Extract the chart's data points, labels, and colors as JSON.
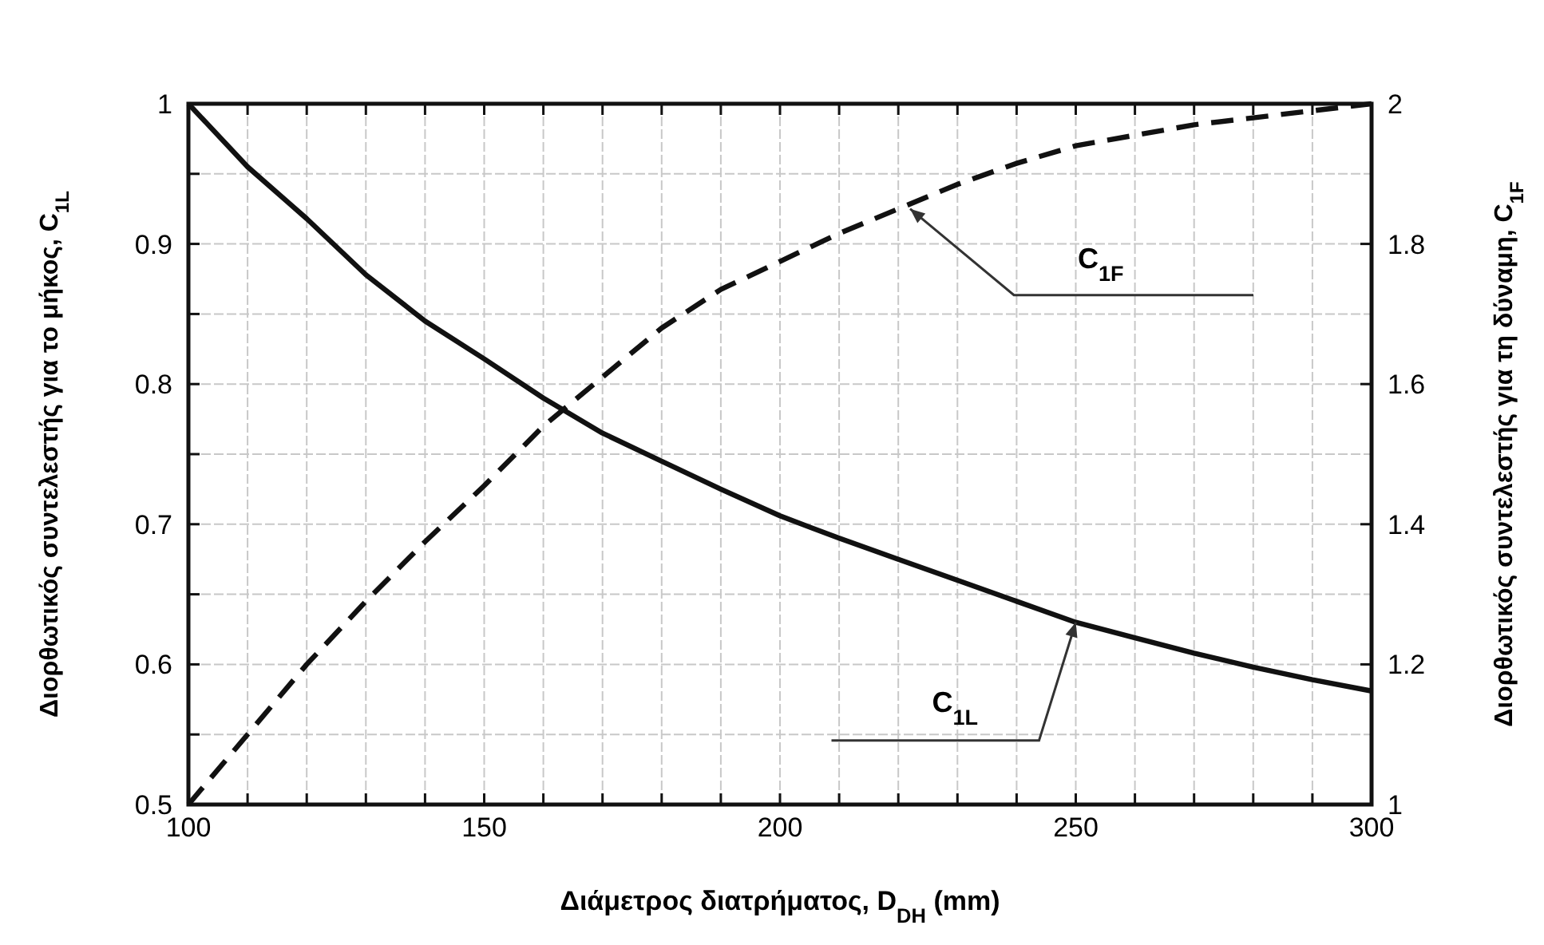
{
  "chart_data": {
    "type": "line",
    "xlabel": "Διάμετρος διατρήματος, D$_{DH}$ (mm)",
    "ylabel": "Διορθωτικός συντελεστής για το μήκος, C$_{1L}$",
    "y2label": "Διορθωτικός συντελεστής για τη δύναμη, C$_{1F}$",
    "x": [
      100,
      110,
      120,
      130,
      140,
      150,
      160,
      170,
      180,
      190,
      200,
      210,
      220,
      230,
      240,
      250,
      260,
      270,
      280,
      290,
      300
    ],
    "series": [
      {
        "color": "#111111",
        "line_style": "solid",
        "values": [
          1.0,
          0.955,
          0.918,
          0.878,
          0.845,
          0.818,
          0.79,
          0.765,
          0.745,
          0.725,
          0.706,
          0.69,
          0.675,
          0.66,
          0.645,
          0.63,
          0.619,
          0.608,
          0.598,
          0.589,
          0.581
        ]
      },
      {
        "color": "#111111",
        "line_style": "dashed",
        "axis": "y2",
        "values": [
          1.0,
          1.1,
          1.2,
          1.29,
          1.375,
          1.455,
          1.54,
          1.61,
          1.68,
          1.735,
          1.775,
          1.815,
          1.85,
          1.885,
          1.915,
          1.94,
          1.955,
          1.97,
          1.98,
          1.99,
          2.0
        ]
      }
    ],
    "xlim": [
      100,
      300
    ],
    "xticks": [
      100,
      {
        "value": 110,
        "label": null
      },
      {
        "value": 120,
        "label": null
      },
      {
        "value": 130,
        "label": null
      },
      {
        "value": 140,
        "label": null
      },
      150,
      {
        "value": 160,
        "label": null
      },
      {
        "value": 170,
        "label": null
      },
      {
        "value": 180,
        "label": null
      },
      {
        "value": 190,
        "label": null
      },
      200,
      {
        "value": 210,
        "label": null
      },
      {
        "value": 220,
        "label": null
      },
      {
        "value": 230,
        "label": null
      },
      {
        "value": 240,
        "label": null
      },
      250,
      {
        "value": 260,
        "label": null
      },
      {
        "value": 270,
        "label": null
      },
      {
        "value": 280,
        "label": null
      },
      {
        "value": 290,
        "label": null
      },
      300
    ],
    "ylim": [
      0.5,
      1
    ],
    "yticks": [
      0.5,
      {
        "value": 0.55,
        "label": null
      },
      0.6,
      {
        "value": 0.65,
        "label": null
      },
      0.7,
      {
        "value": 0.75,
        "label": null
      },
      0.8,
      {
        "value": 0.85,
        "label": null
      },
      0.9,
      {
        "value": 0.95,
        "label": null
      },
      1
    ],
    "y2lim": [
      1,
      2
    ],
    "y2ticks": [
      1,
      1.2,
      1.4,
      1.6,
      1.8,
      2
    ],
    "grid": true,
    "annotations": [
      {
        "text": "C$_{1F}$",
        "x": 222,
        "y": 0.925
      },
      {
        "text": "C$_{1L}$",
        "x": 250,
        "y": 0.63
      }
    ]
  }
}
